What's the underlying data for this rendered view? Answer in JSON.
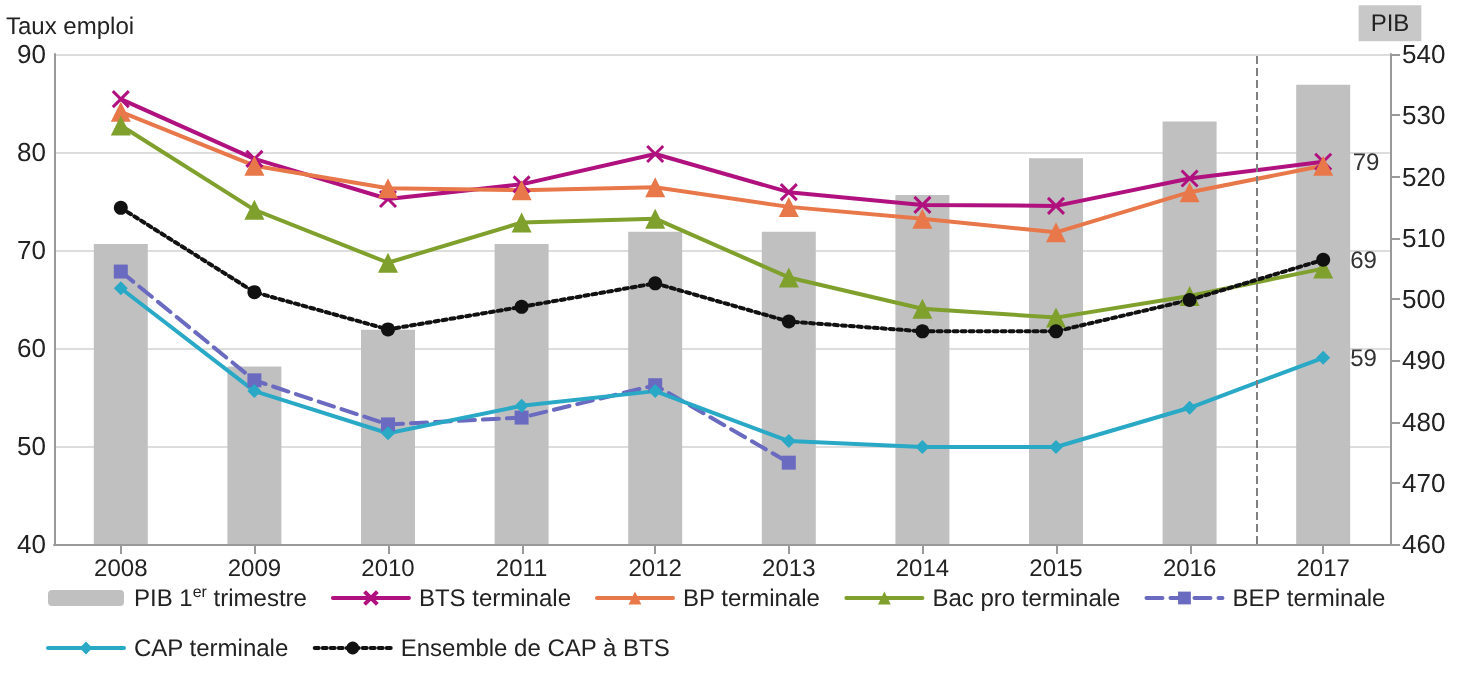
{
  "chart_data": {
    "type": "line",
    "ylabel": "Taux emploi",
    "y2label": "PIB",
    "x": [
      2008,
      2009,
      2010,
      2011,
      2012,
      2013,
      2014,
      2015,
      2016,
      2017
    ],
    "xlim": [
      2007.5,
      2017.5
    ],
    "xticks": [
      2008,
      2009,
      2010,
      2011,
      2012,
      2013,
      2014,
      2015,
      2016,
      2017
    ],
    "ylim": [
      40,
      90
    ],
    "yticks": [
      40,
      50,
      60,
      70,
      80,
      90
    ],
    "y2lim": [
      460,
      540
    ],
    "y2ticks": [
      460,
      470,
      480,
      490,
      500,
      510,
      520,
      530,
      540
    ],
    "grid": "y",
    "legend": "bottom",
    "ref_lines": [
      {
        "axis": "x",
        "value": 2016.5,
        "color": "#808080",
        "line_style": "dashed"
      }
    ],
    "series": [
      {
        "name": "PIB 1$^{er}$ trimestre",
        "type": "bar",
        "axis": "y2",
        "color": "#c0c0c0",
        "values": [
          509,
          489,
          495,
          509,
          511,
          511,
          517,
          523,
          529,
          535
        ]
      },
      {
        "name": "BTS terminale",
        "color": "#b0117f",
        "marker": "cross",
        "line_style": "solid",
        "values": [
          85.4,
          79.3,
          75.2,
          76.7,
          79.8,
          75.9,
          74.6,
          74.5,
          77.3,
          79
        ],
        "value_labels": [
          null,
          null,
          null,
          null,
          null,
          null,
          null,
          null,
          null,
          "79"
        ]
      },
      {
        "name": "BP terminale",
        "color": "#e8774a",
        "marker": "triangle",
        "line_style": "solid",
        "values": [
          84.1,
          78.6,
          76.3,
          76.1,
          76.4,
          74.4,
          73.2,
          71.8,
          75.9,
          78.6
        ]
      },
      {
        "name": "Bac pro terminale",
        "color": "#7fa02c",
        "marker": "triangle",
        "line_style": "solid",
        "values": [
          82.7,
          74.1,
          68.7,
          72.8,
          73.2,
          67.2,
          64.0,
          63.1,
          65.3,
          68.1
        ]
      },
      {
        "name": "BEP terminale",
        "color": "#6a6ac0",
        "marker": "square",
        "line_style": "dashed",
        "values": [
          67.8,
          56.7,
          52.2,
          52.9,
          56.2,
          48.3,
          null,
          null,
          null,
          null
        ]
      },
      {
        "name": "CAP terminale",
        "color": "#29a9c6",
        "marker": "diamond",
        "line_style": "solid",
        "values": [
          66.1,
          55.6,
          51.3,
          54.1,
          55.6,
          50.5,
          49.9,
          49.9,
          53.9,
          59
        ],
        "value_labels": [
          null,
          null,
          null,
          null,
          null,
          null,
          null,
          null,
          null,
          "59"
        ]
      },
      {
        "name": "Ensemble de CAP à BTS",
        "color": "#111111",
        "marker": "circle",
        "line_style": "dotted",
        "values": [
          74.3,
          65.7,
          61.9,
          64.2,
          66.6,
          62.7,
          61.7,
          61.7,
          64.9,
          69
        ],
        "value_labels": [
          null,
          null,
          null,
          null,
          null,
          null,
          null,
          null,
          null,
          "69"
        ]
      }
    ]
  }
}
